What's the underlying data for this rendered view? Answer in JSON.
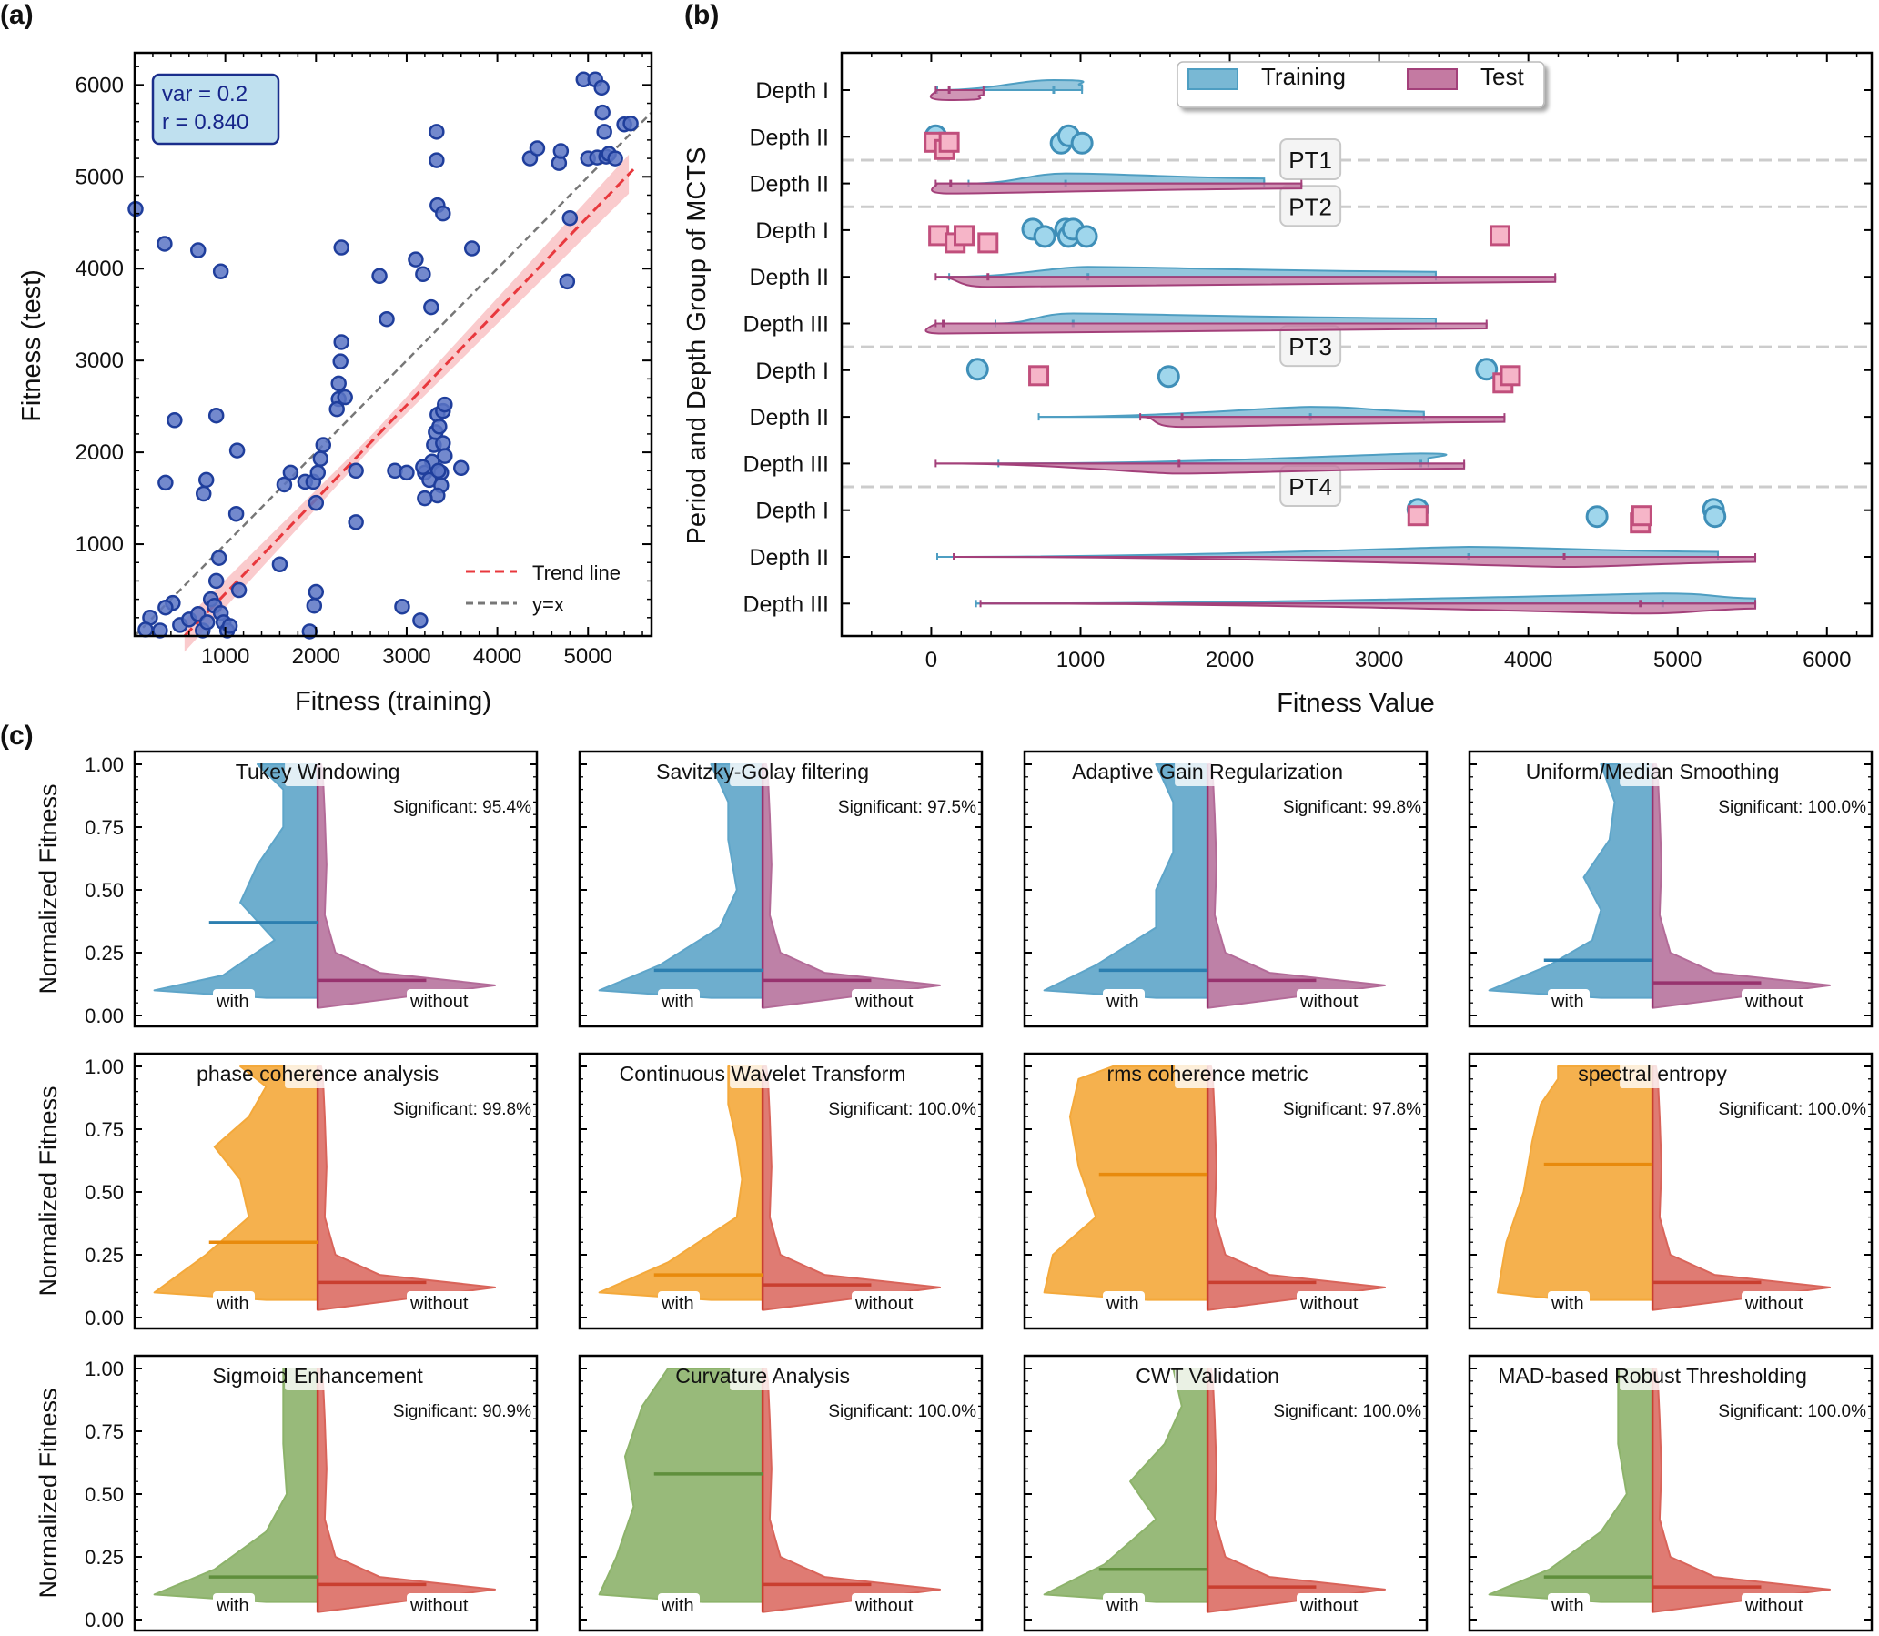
{
  "panel_labels": {
    "a": "(a)",
    "b": "(b)",
    "c": "(c)"
  },
  "colors": {
    "scatter": "#1f3e9c",
    "scatter_fill": "#5b74c4",
    "trend": "#e8383d",
    "band": "#f9c2c4",
    "diag": "#777777",
    "training": "#4e9ec2",
    "training_fill": "#79b8d4",
    "test": "#a3407a",
    "test_fill": "#c47aa2",
    "circle_fill": "#9fd6ec",
    "circle_edge": "#3f8fb8",
    "square_fill": "#f6b5c8",
    "square_edge": "#c14f7c",
    "blue": "#5ea5c9",
    "blue_med": "#2c7fb0",
    "purple": "#b36b98",
    "purple_med": "#97336e",
    "orange": "#f4a93b",
    "orange_med": "#e88a0c",
    "red": "#d9645a",
    "red_med": "#c93f30",
    "green": "#8db36b",
    "green_med": "#5f8f3c"
  },
  "chart_data": [
    {
      "type": "scatter",
      "panel": "(a)",
      "title": "",
      "xlabel": "Fitness (training)",
      "ylabel": "Fitness (test)",
      "xlim": [
        0,
        5700
      ],
      "ylim": [
        0,
        6350
      ],
      "xticks": [
        "1000",
        "2000",
        "3000",
        "4000",
        "5000"
      ],
      "yticks": [
        "1000",
        "2000",
        "3000",
        "4000",
        "5000",
        "6000"
      ],
      "stats_box": [
        "var = 0.2",
        "r = 0.840"
      ],
      "legend": [
        "Trend line",
        "y=x"
      ],
      "legend_position": "lower-right",
      "trend": {
        "x": [
          550,
          5500
        ],
        "y": [
          0,
          5080
        ]
      },
      "points": [
        [
          10,
          4650
        ],
        [
          330,
          4270
        ],
        [
          700,
          4200
        ],
        [
          950,
          3970
        ],
        [
          440,
          2350
        ],
        [
          900,
          2400
        ],
        [
          1130,
          2020
        ],
        [
          340,
          1670
        ],
        [
          790,
          1700
        ],
        [
          760,
          1550
        ],
        [
          420,
          360
        ],
        [
          340,
          310
        ],
        [
          170,
          200
        ],
        [
          280,
          60
        ],
        [
          120,
          70
        ],
        [
          500,
          120
        ],
        [
          600,
          180
        ],
        [
          700,
          240
        ],
        [
          750,
          60
        ],
        [
          800,
          150
        ],
        [
          840,
          400
        ],
        [
          880,
          330
        ],
        [
          950,
          250
        ],
        [
          980,
          150
        ],
        [
          1020,
          60
        ],
        [
          1050,
          110
        ],
        [
          900,
          600
        ],
        [
          930,
          850
        ],
        [
          1150,
          500
        ],
        [
          1120,
          1330
        ],
        [
          1600,
          780
        ],
        [
          1650,
          1650
        ],
        [
          1720,
          1780
        ],
        [
          1880,
          1680
        ],
        [
          1970,
          1680
        ],
        [
          2000,
          1450
        ],
        [
          2020,
          1780
        ],
        [
          2050,
          1930
        ],
        [
          2080,
          2080
        ],
        [
          2000,
          480
        ],
        [
          1980,
          330
        ],
        [
          1930,
          50
        ],
        [
          2280,
          4230
        ],
        [
          2280,
          3200
        ],
        [
          2270,
          2990
        ],
        [
          2250,
          2750
        ],
        [
          2250,
          2580
        ],
        [
          2230,
          2470
        ],
        [
          2320,
          2600
        ],
        [
          2440,
          1800
        ],
        [
          2440,
          1240
        ],
        [
          2700,
          3920
        ],
        [
          2780,
          3450
        ],
        [
          2870,
          1800
        ],
        [
          2950,
          320
        ],
        [
          3000,
          1780
        ],
        [
          3100,
          4100
        ],
        [
          3180,
          3940
        ],
        [
          3270,
          3580
        ],
        [
          3330,
          5490
        ],
        [
          3330,
          5180
        ],
        [
          3340,
          4690
        ],
        [
          3400,
          4600
        ],
        [
          3150,
          170
        ],
        [
          3200,
          1780
        ],
        [
          3250,
          1700
        ],
        [
          3280,
          1900
        ],
        [
          3300,
          2080
        ],
        [
          3320,
          2220
        ],
        [
          3340,
          2410
        ],
        [
          3360,
          2280
        ],
        [
          3380,
          1780
        ],
        [
          3400,
          2450
        ],
        [
          3420,
          2520
        ],
        [
          3400,
          2100
        ],
        [
          3420,
          1960
        ],
        [
          3380,
          1640
        ],
        [
          3340,
          1530
        ],
        [
          3200,
          1500
        ],
        [
          3180,
          1840
        ],
        [
          3350,
          1800
        ],
        [
          3600,
          1830
        ],
        [
          3720,
          4220
        ],
        [
          4360,
          5200
        ],
        [
          4440,
          5310
        ],
        [
          4680,
          5150
        ],
        [
          4700,
          5280
        ],
        [
          4770,
          3860
        ],
        [
          4800,
          4550
        ],
        [
          4950,
          6060
        ],
        [
          5000,
          5200
        ],
        [
          5080,
          6060
        ],
        [
          5100,
          5210
        ],
        [
          5150,
          5970
        ],
        [
          5160,
          5700
        ],
        [
          5180,
          5490
        ],
        [
          5200,
          5220
        ],
        [
          5230,
          5250
        ],
        [
          5300,
          5200
        ],
        [
          5400,
          5570
        ],
        [
          5470,
          5580
        ]
      ]
    },
    {
      "type": "violin",
      "panel": "(b)",
      "xlabel": "Fitness Value",
      "ylabel": "Period and Depth Group of MCTS",
      "xlim": [
        -600,
        6300
      ],
      "xticks": [
        "0",
        "1000",
        "2000",
        "3000",
        "4000",
        "5000",
        "6000"
      ],
      "rows": [
        "Depth I",
        "Depth II",
        "Depth II",
        "Depth I",
        "Depth II",
        "Depth III",
        "Depth I",
        "Depth II",
        "Depth III",
        "Depth I",
        "Depth II",
        "Depth III"
      ],
      "separators": [
        "PT1",
        "PT2",
        "PT3",
        "PT4"
      ],
      "legend": [
        "Training",
        "Test"
      ],
      "legend_position": "top",
      "series": [
        {
          "name": "Training",
          "violins": [
            {
              "row": 0,
              "min": 40,
              "max": 1010,
              "median": 820
            },
            {
              "row": 2,
              "min": 250,
              "max": 2230,
              "median": 900
            },
            {
              "row": 4,
              "min": 120,
              "max": 3380,
              "median": 1050
            },
            {
              "row": 5,
              "min": 430,
              "max": 3380,
              "median": 950
            },
            {
              "row": 7,
              "min": 720,
              "max": 3300,
              "median": 2540
            },
            {
              "row": 8,
              "min": 450,
              "max": 3330,
              "median": 3280
            },
            {
              "row": 10,
              "min": 40,
              "max": 5270,
              "median": 3600
            },
            {
              "row": 11,
              "min": 300,
              "max": 5520,
              "median": 4900
            }
          ],
          "points": [
            {
              "row": 1,
              "values": [
                30,
                870,
                920,
                1010
              ]
            },
            {
              "row": 3,
              "values": [
                680,
                760,
                900,
                920,
                950,
                1040
              ]
            },
            {
              "row": 6,
              "values": [
                310,
                1590,
                3720
              ]
            },
            {
              "row": 9,
              "values": [
                3260,
                4460,
                5240,
                5250
              ]
            }
          ]
        },
        {
          "name": "Test",
          "violins": [
            {
              "row": 0,
              "min": 30,
              "max": 350,
              "median": 120
            },
            {
              "row": 2,
              "min": 30,
              "max": 2480,
              "median": 130
            },
            {
              "row": 4,
              "min": 30,
              "max": 4180,
              "median": 380
            },
            {
              "row": 5,
              "min": 30,
              "max": 3720,
              "median": 80
            },
            {
              "row": 7,
              "min": 1400,
              "max": 3840,
              "median": 1680
            },
            {
              "row": 8,
              "min": 30,
              "max": 3570,
              "median": 1660
            },
            {
              "row": 10,
              "min": 150,
              "max": 5520,
              "median": 4240
            },
            {
              "row": 11,
              "min": 330,
              "max": 5520,
              "median": 4750
            }
          ],
          "points": [
            {
              "row": 1,
              "values": [
                20,
                90,
                120
              ]
            },
            {
              "row": 3,
              "values": [
                50,
                160,
                220,
                380,
                3810
              ]
            },
            {
              "row": 6,
              "values": [
                720,
                3830,
                3880
              ]
            },
            {
              "row": 9,
              "values": [
                3260,
                4750,
                4760
              ]
            }
          ]
        }
      ]
    },
    {
      "type": "violin",
      "panel": "(c)",
      "ylabel": "Normalized Fitness",
      "ylim": [
        0,
        1
      ],
      "yticks": [
        "0.00",
        "0.25",
        "0.50",
        "0.75",
        "1.00"
      ],
      "with_label": "with",
      "without_label": "without",
      "subplots": [
        {
          "title": "Tukey Windowing",
          "significance": "Significant: 95.4%",
          "with_median": 0.37,
          "without_median": 0.14,
          "with_max": 1.0,
          "palette": "blue"
        },
        {
          "title": "Savitzky-Golay filtering",
          "significance": "Significant: 97.5%",
          "with_median": 0.18,
          "without_median": 0.14,
          "with_max": 1.0,
          "palette": "blue"
        },
        {
          "title": "Adaptive Gain Regularization",
          "significance": "Significant: 99.8%",
          "with_median": 0.18,
          "without_median": 0.14,
          "with_max": 1.0,
          "palette": "blue"
        },
        {
          "title": "Uniform/Median Smoothing",
          "significance": "Significant: 100.0%",
          "with_median": 0.22,
          "without_median": 0.13,
          "with_max": 1.0,
          "palette": "blue"
        },
        {
          "title": "phase coherence analysis",
          "significance": "Significant: 99.8%",
          "with_median": 0.3,
          "without_median": 0.14,
          "with_max": 1.0,
          "palette": "orange"
        },
        {
          "title": "Continuous Wavelet Transform",
          "significance": "Significant: 100.0%",
          "with_median": 0.17,
          "without_median": 0.13,
          "with_max": 1.0,
          "palette": "orange"
        },
        {
          "title": "rms coherence metric",
          "significance": "Significant: 97.8%",
          "with_median": 0.57,
          "without_median": 0.14,
          "with_max": 1.0,
          "palette": "orange"
        },
        {
          "title": "spectral entropy",
          "significance": "Significant: 100.0%",
          "with_median": 0.61,
          "without_median": 0.14,
          "with_max": 1.0,
          "palette": "orange"
        },
        {
          "title": "Sigmoid Enhancement",
          "significance": "Significant: 90.9%",
          "with_median": 0.17,
          "without_median": 0.14,
          "with_max": 1.0,
          "palette": "green"
        },
        {
          "title": "Curvature Analysis",
          "significance": "Significant: 100.0%",
          "with_median": 0.58,
          "without_median": 0.14,
          "with_max": 1.0,
          "palette": "green"
        },
        {
          "title": "CWT Validation",
          "significance": "Significant: 100.0%",
          "with_median": 0.2,
          "without_median": 0.13,
          "with_max": 1.0,
          "palette": "green"
        },
        {
          "title": "MAD-based Robust Thresholding",
          "significance": "Significant: 100.0%",
          "with_median": 0.17,
          "without_median": 0.13,
          "with_max": 1.0,
          "palette": "green"
        }
      ]
    }
  ]
}
